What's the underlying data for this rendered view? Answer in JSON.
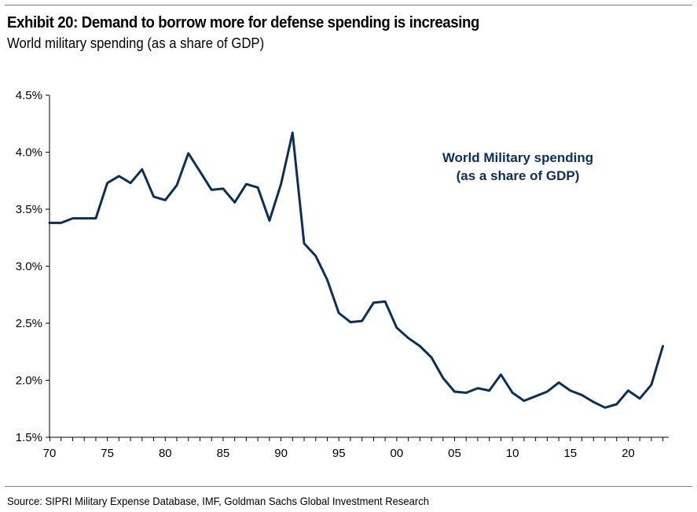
{
  "header": {
    "title": "Exhibit 20: Demand to borrow more for defense spending is increasing",
    "subtitle": "World military spending (as a share of GDP)"
  },
  "footer": {
    "source": "Source: SIPRI Military Expense Database, IMF, Goldman Sachs Global Investment Research"
  },
  "colors": {
    "line": "#0c2f5a",
    "axis": "#000000",
    "rule": "#7f7f7f"
  },
  "chart_data": {
    "type": "line",
    "title": "Exhibit 20: Demand to borrow more for defense spending is increasing",
    "subtitle": "World military spending (as a share of GDP)",
    "xlabel": "",
    "ylabel": "",
    "xlim": [
      1970,
      2023
    ],
    "ylim": [
      1.5,
      4.5
    ],
    "grid": false,
    "x_ticks": [
      1970,
      1975,
      1980,
      1985,
      1990,
      1995,
      2000,
      2005,
      2010,
      2015,
      2020
    ],
    "x_tick_labels": [
      "70",
      "75",
      "80",
      "85",
      "90",
      "95",
      "00",
      "05",
      "10",
      "15",
      "20"
    ],
    "y_ticks": [
      1.5,
      2.0,
      2.5,
      3.0,
      3.5,
      4.0,
      4.5
    ],
    "y_tick_labels": [
      "1.5%",
      "2.0%",
      "2.5%",
      "3.0%",
      "3.5%",
      "4.0%",
      "4.5%"
    ],
    "annotation": [
      "World Military spending",
      "(as a share of GDP)"
    ],
    "series": [
      {
        "name": "World Military spending (as a share of GDP)",
        "x": [
          1970,
          1971,
          1972,
          1973,
          1974,
          1975,
          1976,
          1977,
          1978,
          1979,
          1980,
          1981,
          1982,
          1983,
          1984,
          1985,
          1986,
          1987,
          1988,
          1989,
          1990,
          1991,
          1992,
          1993,
          1994,
          1995,
          1996,
          1997,
          1998,
          1999,
          2000,
          2001,
          2002,
          2003,
          2004,
          2005,
          2006,
          2007,
          2008,
          2009,
          2010,
          2011,
          2012,
          2013,
          2014,
          2015,
          2016,
          2017,
          2018,
          2019,
          2020,
          2021,
          2022,
          2023
        ],
        "values": [
          3.38,
          3.38,
          3.42,
          3.42,
          3.42,
          3.73,
          3.79,
          3.73,
          3.85,
          3.61,
          3.58,
          3.71,
          3.99,
          3.83,
          3.67,
          3.68,
          3.56,
          3.72,
          3.69,
          3.4,
          3.72,
          4.17,
          3.2,
          3.09,
          2.88,
          2.59,
          2.51,
          2.52,
          2.68,
          2.69,
          2.46,
          2.37,
          2.3,
          2.2,
          2.02,
          1.9,
          1.89,
          1.93,
          1.91,
          2.05,
          1.89,
          1.82,
          1.86,
          1.9,
          1.98,
          1.91,
          1.87,
          1.81,
          1.76,
          1.79,
          1.91,
          1.84,
          1.96,
          2.3
        ]
      }
    ]
  }
}
